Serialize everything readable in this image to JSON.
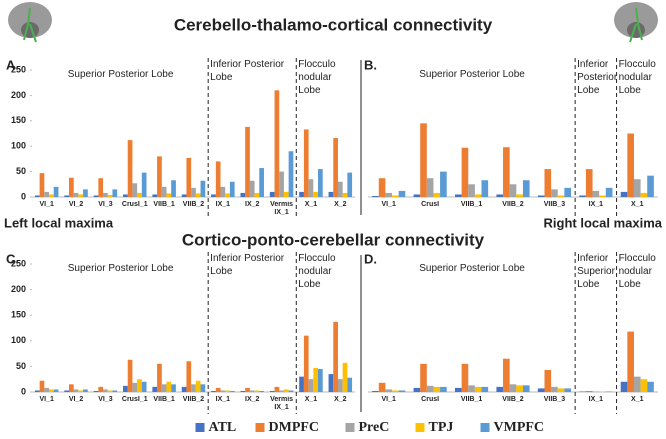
{
  "titles": [
    "Cerebello-thalamo-cortical connectivity",
    "Cortico-ponto-cerebellar connectivity"
  ],
  "side_labels": [
    "Left local maxima",
    "Right local maxima"
  ],
  "chart_data": [
    {
      "type": "bar",
      "panel": "A.",
      "group_labels": [
        "Superior Posterior Lobe",
        "Inferior Posterior Lobe",
        "Flocculo nodular Lobe"
      ],
      "categories": [
        "VI_1",
        "VI_2",
        "VI_3",
        "CrusI_1",
        "VIIB_1",
        "VIIB_2",
        "IX_1",
        "IX_2",
        "Vermis IX_1",
        "X_1",
        "X_2"
      ],
      "series": [
        {
          "name": "ATL",
          "color": "#4472c4",
          "values": [
            3,
            3,
            3,
            5,
            5,
            5,
            5,
            8,
            10,
            10,
            10
          ]
        },
        {
          "name": "DMPFC",
          "color": "#ed7d31",
          "values": [
            47,
            38,
            37,
            112,
            80,
            77,
            70,
            138,
            210,
            133,
            116
          ]
        },
        {
          "name": "PreC",
          "color": "#a5a5a5",
          "values": [
            10,
            8,
            8,
            27,
            20,
            18,
            20,
            32,
            50,
            35,
            30
          ]
        },
        {
          "name": "TPJ",
          "color": "#ffc000",
          "values": [
            5,
            5,
            4,
            8,
            7,
            7,
            7,
            8,
            10,
            10,
            8
          ]
        },
        {
          "name": "VMPFC",
          "color": "#5b9bd5",
          "values": [
            20,
            15,
            15,
            48,
            33,
            32,
            30,
            57,
            90,
            55,
            48
          ]
        }
      ],
      "ylim": [
        0,
        250
      ],
      "yticks": [
        0,
        50,
        100,
        150,
        200,
        250
      ]
    },
    {
      "type": "bar",
      "panel": "B.",
      "group_labels": [
        "Superior Posterior Lobe",
        "Inferior Posterior Lobe",
        "Flocculo nodular Lobe"
      ],
      "categories": [
        "VI_1",
        "CrusI",
        "VIIB_1",
        "VIIB_2",
        "VIIB_3",
        "IX_1",
        "X_1"
      ],
      "series": [
        {
          "name": "ATL",
          "color": "#4472c4",
          "values": [
            2,
            5,
            5,
            5,
            3,
            3,
            10
          ]
        },
        {
          "name": "DMPFC",
          "color": "#ed7d31",
          "values": [
            37,
            145,
            97,
            98,
            55,
            55,
            125
          ]
        },
        {
          "name": "PreC",
          "color": "#a5a5a5",
          "values": [
            8,
            37,
            25,
            25,
            15,
            12,
            35
          ]
        },
        {
          "name": "TPJ",
          "color": "#ffc000",
          "values": [
            3,
            8,
            5,
            5,
            3,
            3,
            8
          ]
        },
        {
          "name": "VMPFC",
          "color": "#5b9bd5",
          "values": [
            12,
            50,
            33,
            33,
            18,
            18,
            42
          ]
        }
      ],
      "ylim": [
        0,
        250
      ]
    },
    {
      "type": "bar",
      "panel": "C.",
      "group_labels": [
        "Superior Posterior Lobe",
        "Inferior Posterior Lobe",
        "Flocculo nodular Lobe"
      ],
      "categories": [
        "VI_1",
        "VI_2",
        "VI_3",
        "CrusI_1",
        "VIIB_1",
        "VIIB_2",
        "IX_1",
        "IX_2",
        "Vermis IX_1",
        "X_1",
        "X_2"
      ],
      "series": [
        {
          "name": "ATL",
          "color": "#4472c4",
          "values": [
            3,
            3,
            2,
            12,
            10,
            10,
            2,
            2,
            2,
            30,
            35
          ]
        },
        {
          "name": "DMPFC",
          "color": "#ed7d31",
          "values": [
            22,
            15,
            10,
            63,
            55,
            60,
            8,
            8,
            10,
            110,
            137
          ]
        },
        {
          "name": "PreC",
          "color": "#a5a5a5",
          "values": [
            8,
            5,
            5,
            18,
            15,
            15,
            3,
            3,
            3,
            25,
            25
          ]
        },
        {
          "name": "TPJ",
          "color": "#ffc000",
          "values": [
            5,
            3,
            3,
            25,
            20,
            22,
            3,
            3,
            5,
            47,
            57
          ]
        },
        {
          "name": "VMPFC",
          "color": "#5b9bd5",
          "values": [
            5,
            5,
            3,
            20,
            15,
            15,
            2,
            2,
            3,
            45,
            28
          ]
        }
      ],
      "ylim": [
        0,
        250
      ],
      "yticks": [
        0,
        50,
        100,
        150,
        200,
        250
      ]
    },
    {
      "type": "bar",
      "panel": "D.",
      "group_labels": [
        "Superior Posterior Lobe",
        "Inferior Superior Lobe",
        "Flocculo nodular Lobe"
      ],
      "categories": [
        "VI_1",
        "CrusI",
        "VIIB_1",
        "VIIB_2",
        "VIIB_3",
        "IX_1",
        "X_1"
      ],
      "series": [
        {
          "name": "ATL",
          "color": "#4472c4",
          "values": [
            2,
            8,
            8,
            10,
            7,
            1,
            20
          ]
        },
        {
          "name": "DMPFC",
          "color": "#ed7d31",
          "values": [
            18,
            55,
            55,
            65,
            43,
            2,
            118
          ]
        },
        {
          "name": "PreC",
          "color": "#a5a5a5",
          "values": [
            5,
            12,
            13,
            15,
            10,
            1,
            30
          ]
        },
        {
          "name": "TPJ",
          "color": "#ffc000",
          "values": [
            3,
            10,
            10,
            13,
            7,
            1,
            25
          ]
        },
        {
          "name": "VMPFC",
          "color": "#5b9bd5",
          "values": [
            3,
            10,
            10,
            13,
            7,
            1,
            20
          ]
        }
      ],
      "ylim": [
        0,
        250
      ]
    }
  ]
}
